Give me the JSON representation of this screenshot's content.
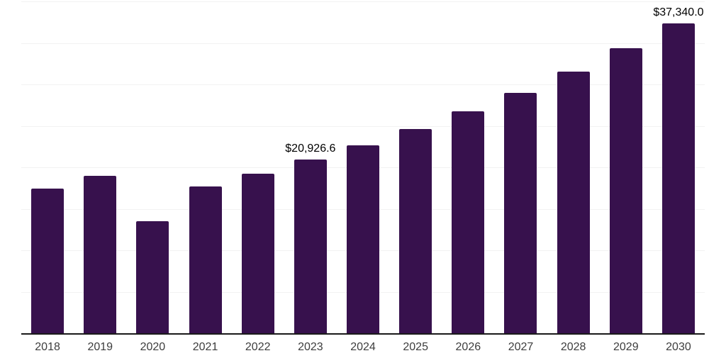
{
  "chart_data": {
    "type": "bar",
    "title": "",
    "xlabel": "",
    "ylabel": "",
    "categories": [
      "2018",
      "2019",
      "2020",
      "2021",
      "2022",
      "2023",
      "2024",
      "2025",
      "2026",
      "2027",
      "2028",
      "2029",
      "2030"
    ],
    "values": [
      17400,
      19000,
      13480,
      17730,
      19270,
      20926.6,
      22620,
      24650,
      26780,
      28990,
      31540,
      34350,
      37340.0
    ],
    "annotations": [
      {
        "category": "2023",
        "text": "$20,926.6"
      },
      {
        "category": "2030",
        "text": "$37,340.0"
      }
    ],
    "ylim": [
      0,
      40000
    ],
    "gridline_step": 5000,
    "grid": true,
    "legend": false,
    "y_axis_labels_visible": false,
    "value_prefix": "$",
    "colors": {
      "bar": "#37114d",
      "axis": "#1a1a1a",
      "gridline": "#f2f2f2",
      "x_label": "#3d3d3d",
      "annotation": "#000000",
      "background": "#ffffff"
    }
  }
}
